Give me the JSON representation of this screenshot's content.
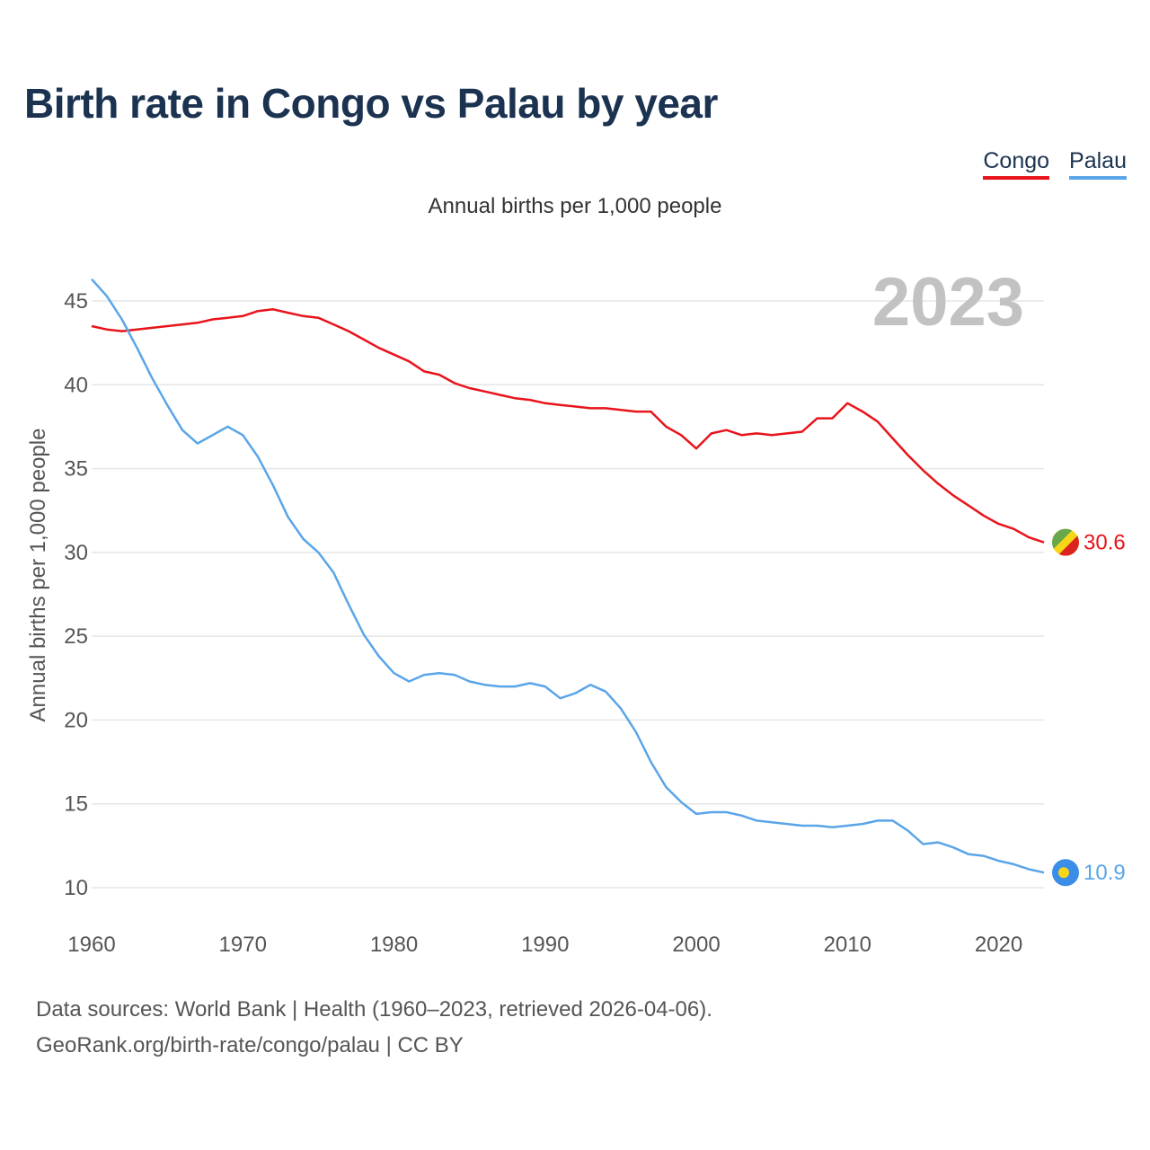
{
  "title": "Birth rate in Congo vs Palau by year",
  "subtitle": "Annual births per 1,000 people",
  "legend": [
    {
      "label": "Congo",
      "color": "#e8141b"
    },
    {
      "label": "Palau",
      "color": "#5aa5e8"
    }
  ],
  "year_watermark": "2023",
  "footer": {
    "line1": "Data sources: World Bank | Health (1960–2023, retrieved 2026-04-06).",
    "line2": "GeoRank.org/birth-rate/congo/palau | CC BY"
  },
  "chart_data": {
    "type": "line",
    "title": "Birth rate in Congo vs Palau by year",
    "ylabel": "Annual births per 1,000 people",
    "xlabel": "",
    "xlim": [
      1960,
      2023
    ],
    "ylim": [
      8.5,
      47
    ],
    "x_ticks": [
      1960,
      1970,
      1980,
      1990,
      2000,
      2010,
      2020
    ],
    "y_ticks": [
      10,
      15,
      20,
      25,
      30,
      35,
      40,
      45
    ],
    "grid": true,
    "x": [
      1960,
      1961,
      1962,
      1963,
      1964,
      1965,
      1966,
      1967,
      1968,
      1969,
      1970,
      1971,
      1972,
      1973,
      1974,
      1975,
      1976,
      1977,
      1978,
      1979,
      1980,
      1981,
      1982,
      1983,
      1984,
      1985,
      1986,
      1987,
      1988,
      1989,
      1990,
      1991,
      1992,
      1993,
      1994,
      1995,
      1996,
      1997,
      1998,
      1999,
      2000,
      2001,
      2002,
      2003,
      2004,
      2005,
      2006,
      2007,
      2008,
      2009,
      2010,
      2011,
      2012,
      2013,
      2014,
      2015,
      2016,
      2017,
      2018,
      2019,
      2020,
      2021,
      2022,
      2023
    ],
    "series": [
      {
        "name": "Congo",
        "color": "#e8141b",
        "end_label": "30.6",
        "values": [
          43.5,
          43.3,
          43.2,
          43.3,
          43.4,
          43.5,
          43.6,
          43.7,
          43.9,
          44.0,
          44.1,
          44.4,
          44.5,
          44.3,
          44.1,
          44.0,
          43.6,
          43.2,
          42.7,
          42.2,
          41.8,
          41.4,
          40.8,
          40.6,
          40.1,
          39.8,
          39.6,
          39.4,
          39.2,
          39.1,
          38.9,
          38.8,
          38.7,
          38.6,
          38.6,
          38.5,
          38.4,
          38.4,
          37.5,
          37.0,
          36.2,
          37.1,
          37.3,
          37.0,
          37.1,
          37.0,
          37.1,
          37.2,
          38.0,
          38.0,
          38.9,
          38.4,
          37.8,
          36.8,
          35.8,
          34.9,
          34.1,
          33.4,
          32.8,
          32.2,
          31.7,
          31.4,
          30.9,
          30.6
        ]
      },
      {
        "name": "Palau",
        "color": "#5aa5e8",
        "end_label": "10.9",
        "values": [
          46.3,
          45.3,
          43.9,
          42.2,
          40.4,
          38.8,
          37.3,
          36.5,
          37.0,
          37.5,
          37.0,
          35.7,
          34.0,
          32.1,
          30.8,
          30.0,
          28.8,
          26.9,
          25.1,
          23.8,
          22.8,
          22.3,
          22.7,
          22.8,
          22.7,
          22.3,
          22.1,
          22.0,
          22.0,
          22.2,
          22.0,
          21.3,
          21.6,
          22.1,
          21.7,
          20.7,
          19.3,
          17.5,
          16.0,
          15.1,
          14.4,
          14.5,
          14.5,
          14.3,
          14.0,
          13.9,
          13.8,
          13.7,
          13.7,
          13.6,
          13.7,
          13.8,
          14.0,
          14.0,
          13.4,
          12.6,
          12.7,
          12.4,
          12.0,
          11.9,
          11.6,
          11.4,
          11.1,
          10.9
        ]
      }
    ]
  }
}
